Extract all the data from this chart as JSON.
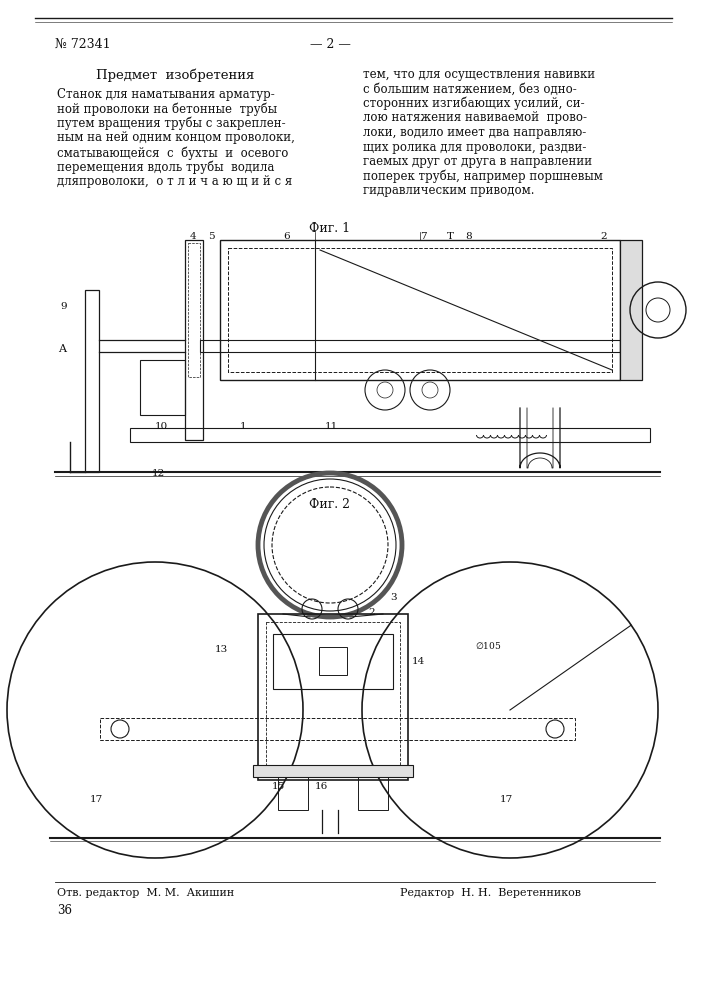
{
  "bg_color": "#ffffff",
  "page_number": "№ 72341",
  "page_num2": "— 2 —",
  "title": "Предмет  изобретения",
  "left_text_lines": [
    "Станок для наматывания арматур-",
    "ной проволоки на бетонные  трубы",
    "путем вращения трубы с закреплен-",
    "ным на ней одним концом проволоки,",
    "сматывающейся  с  бухты  и  осевого",
    "перемещения вдоль трубы  водила",
    "дляпроволоки,  о т л и ч а ю щ и й с я"
  ],
  "right_text_lines": [
    "тем, что для осуществления навивки",
    "с большим натяжением, без одно-",
    "сторонних изгибающих усилий, си-",
    "лою натяжения навиваемой  прово-",
    "локи, водило имеет два направляю-",
    "щих ролика для проволоки, раздви-",
    "гаемых друг от друга в направлении",
    "поперек трубы, например поршневым",
    "гидравлическим приводом."
  ],
  "fig1_label": "Фиг. 1",
  "fig2_label": "Фиг. 2",
  "footer_left": "Отв. редактор  М. М.  Акишин",
  "footer_right": "Редактор  Н. Н.  Веретенников",
  "footer_num": "36"
}
